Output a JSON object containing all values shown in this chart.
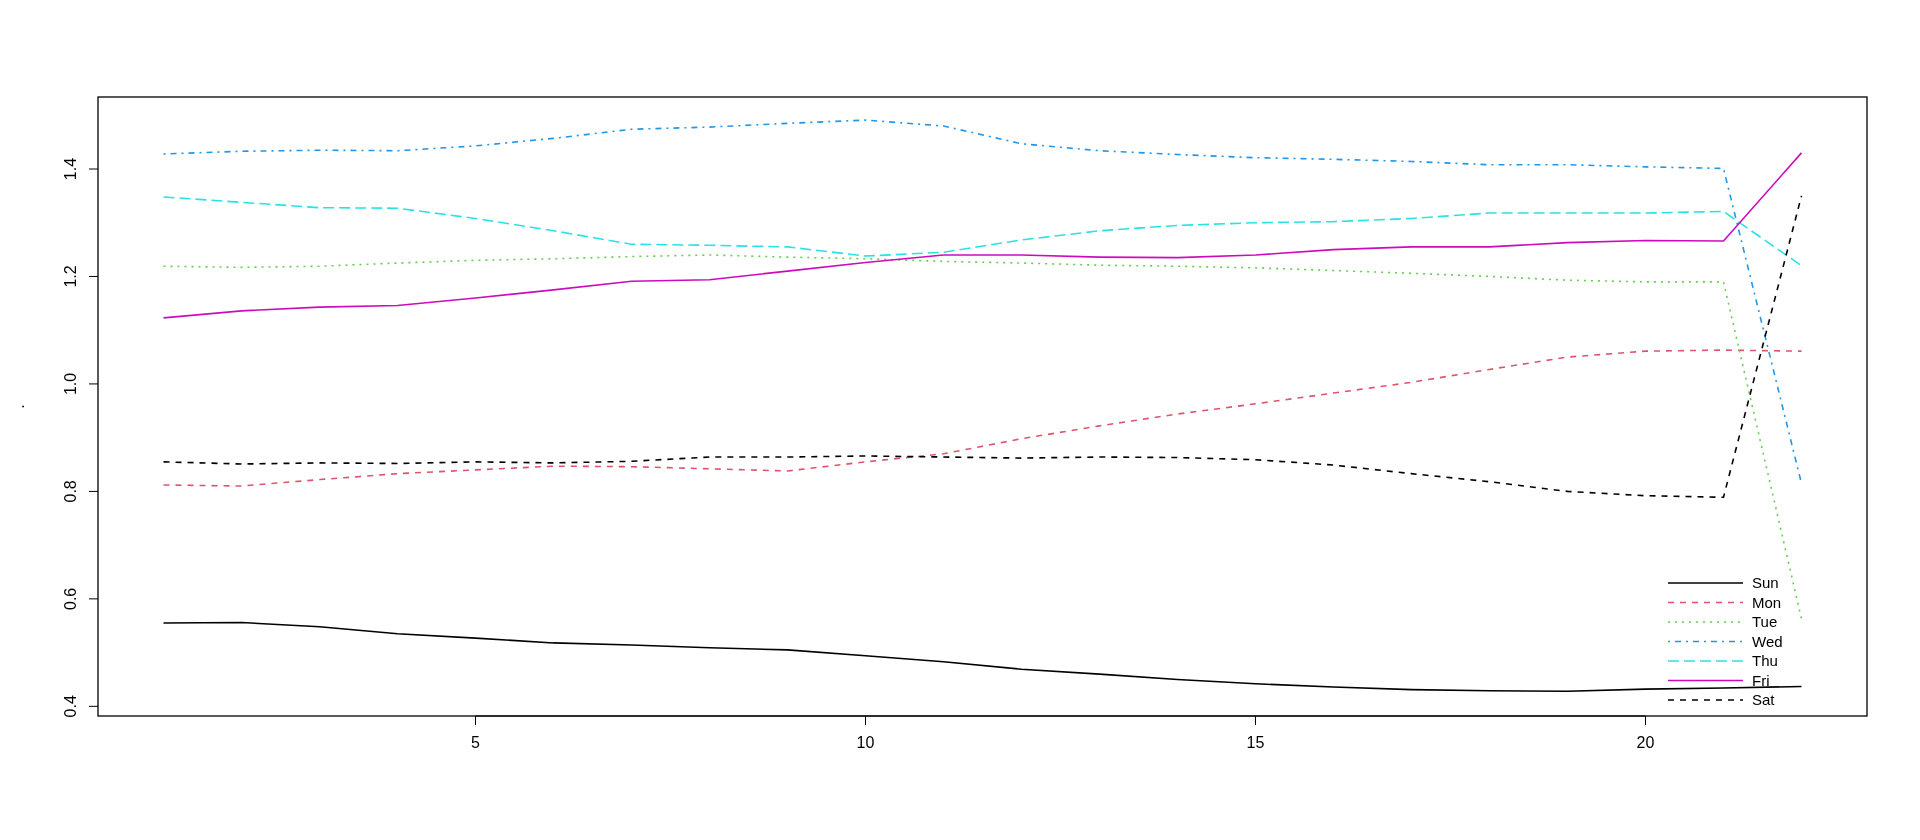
{
  "chart_data": {
    "type": "line",
    "ylabel": ".",
    "x": [
      1,
      2,
      3,
      4,
      5,
      6,
      7,
      8,
      9,
      10,
      11,
      12,
      13,
      14,
      15,
      16,
      17,
      18,
      19,
      20,
      21,
      22
    ],
    "xlim": [
      0.16,
      22.84
    ],
    "xticks": [
      5,
      10,
      15,
      20
    ],
    "ylim": [
      0.382,
      1.534
    ],
    "yticks": [
      0.4,
      0.6,
      0.8,
      {
        "value": 1,
        "label": "1.0"
      },
      1.2,
      1.4
    ],
    "legend": "bottom right",
    "grid": false,
    "series": [
      {
        "name": "Sun",
        "color": "#000000",
        "line_style": "solid",
        "values": [
          0.555,
          0.556,
          0.548,
          0.535,
          0.527,
          0.518,
          0.514,
          0.509,
          0.505,
          0.494,
          0.483,
          0.469,
          0.46,
          0.45,
          0.442,
          0.436,
          0.431,
          0.429,
          0.428,
          0.432,
          0.434,
          0.437
        ]
      },
      {
        "name": "Mon",
        "color": "#df536b",
        "line_style": "dashed",
        "values": [
          0.812,
          0.81,
          0.822,
          0.833,
          0.84,
          0.847,
          0.846,
          0.842,
          0.838,
          0.855,
          0.87,
          0.898,
          0.922,
          0.944,
          0.963,
          0.983,
          1.003,
          1.027,
          1.05,
          1.061,
          1.063,
          1.061
        ]
      },
      {
        "name": "Tue",
        "color": "#61d04f",
        "line_style": "dotted",
        "values": [
          1.219,
          1.217,
          1.219,
          1.225,
          1.23,
          1.233,
          1.237,
          1.24,
          1.236,
          1.233,
          1.228,
          1.225,
          1.221,
          1.219,
          1.216,
          1.211,
          1.206,
          1.2,
          1.193,
          1.19,
          1.19,
          0.563
        ]
      },
      {
        "name": "Wed",
        "color": "#2297e6",
        "line_style": "dotdash",
        "values": [
          1.428,
          1.433,
          1.435,
          1.434,
          1.443,
          1.457,
          1.474,
          1.478,
          1.485,
          1.491,
          1.48,
          1.447,
          1.434,
          1.427,
          1.421,
          1.418,
          1.414,
          1.408,
          1.408,
          1.404,
          1.401,
          0.815
        ]
      },
      {
        "name": "Thu",
        "color": "#28e2e5",
        "line_style": "longdash",
        "values": [
          1.348,
          1.338,
          1.328,
          1.327,
          1.308,
          1.285,
          1.26,
          1.258,
          1.255,
          1.238,
          1.245,
          1.268,
          1.285,
          1.295,
          1.3,
          1.302,
          1.308,
          1.318,
          1.318,
          1.318,
          1.321,
          1.22
        ]
      },
      {
        "name": "Fri",
        "color": "#cd0bbc",
        "line_style": "solid",
        "values": [
          1.123,
          1.136,
          1.143,
          1.146,
          1.16,
          1.175,
          1.191,
          1.194,
          1.21,
          1.226,
          1.24,
          1.24,
          1.236,
          1.235,
          1.24,
          1.25,
          1.255,
          1.255,
          1.263,
          1.267,
          1.266,
          1.43
        ]
      },
      {
        "name": "Sat",
        "color": "#000000",
        "line_style": "dashed",
        "values": [
          0.855,
          0.851,
          0.853,
          0.852,
          0.855,
          0.853,
          0.856,
          0.864,
          0.864,
          0.866,
          0.864,
          0.862,
          0.864,
          0.863,
          0.859,
          0.849,
          0.833,
          0.818,
          0.8,
          0.792,
          0.789,
          1.35
        ]
      }
    ]
  }
}
